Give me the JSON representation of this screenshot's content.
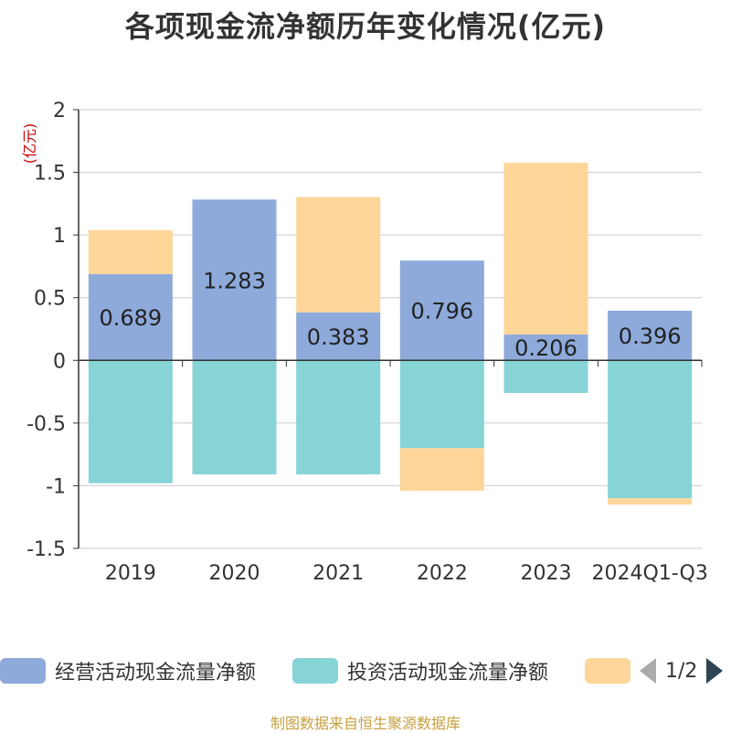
{
  "header": {
    "title": "各项现金流净额历年变化情况(亿元)"
  },
  "unit_label": "(亿元)",
  "legend": {
    "items": [
      {
        "label": "经营活动现金流量净额",
        "color": "#8eaadb"
      },
      {
        "label": "投资活动现金流量净额",
        "color": "#86d4d6"
      },
      {
        "label": "",
        "color": "#fed69a"
      }
    ],
    "page_indicator": "1/2"
  },
  "footer": {
    "source": "制图数据来自恒生聚源数据库"
  },
  "chart_data": {
    "type": "bar",
    "stacked": true,
    "categories": [
      "2019",
      "2020",
      "2021",
      "2022",
      "2023",
      "2024Q1-Q3"
    ],
    "ylim": [
      -1.5,
      2
    ],
    "yticks": [
      "2",
      "1.5",
      "1",
      "0.5",
      "0",
      "-0.5",
      "-1",
      "-1.5"
    ],
    "ytick_values": [
      2,
      1.5,
      1,
      0.5,
      0,
      -0.5,
      -1,
      -1.5
    ],
    "grid": true,
    "series": [
      {
        "name": "经营活动现金流量净额",
        "color": "#8eaadb",
        "values": [
          0.689,
          1.283,
          0.383,
          0.796,
          0.206,
          0.396
        ],
        "labels": [
          "0.689",
          "1.283",
          "0.383",
          "0.796",
          "0.206",
          "0.396"
        ]
      },
      {
        "name": "投资活动现金流量净额",
        "color": "#86d4d6",
        "values": [
          -0.98,
          -0.91,
          -0.91,
          -0.7,
          -0.26,
          -1.1
        ]
      },
      {
        "color": "#fed69a",
        "values": [
          0.35,
          0.0,
          0.92,
          -0.34,
          1.37,
          -0.05
        ]
      }
    ]
  }
}
